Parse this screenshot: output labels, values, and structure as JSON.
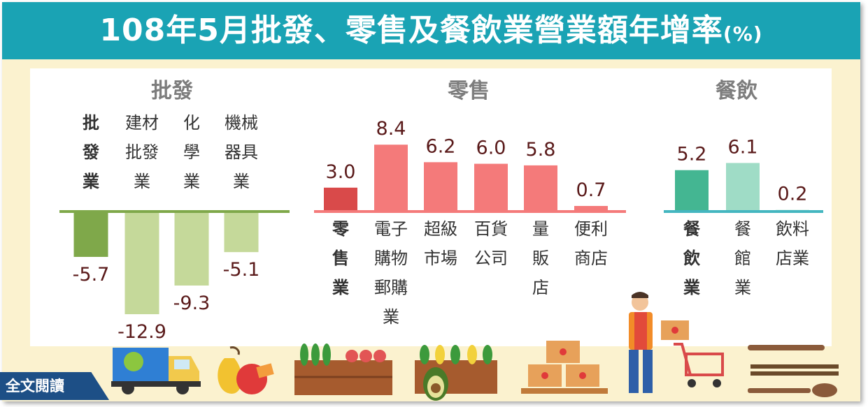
{
  "title": {
    "main": "108年5月批發、零售及餐飲業營業額年增率",
    "unit": "(%)"
  },
  "read_more_label": "全文閱讀",
  "colors": {
    "title_bar": "#1aa3b4",
    "background": "#fbf2cf",
    "wholesale_total": "#7fa84a",
    "wholesale_sub": "#c5d99a",
    "retail_total": "#d94a4a",
    "retail_sub": "#f47a7a",
    "food_total": "#44b692",
    "food_sub": "#9fdcc6",
    "value_text": "#5a1a1a"
  },
  "icons": [
    "delivery-truck-icon",
    "fruit-icon",
    "vegetable-crate-icon",
    "avocado-crate-icon",
    "box-pallet-icon",
    "shopper-with-cart-icon",
    "cutlery-icon"
  ],
  "chart_data": {
    "type": "bar",
    "title": "108年5月批發、零售及餐飲業營業額年增率(%)",
    "groups": [
      {
        "name": "批發",
        "color_total": "#7fa84a",
        "color_sub": "#c5d99a",
        "bars": [
          {
            "label": "批發業",
            "value": -5.7,
            "total": true
          },
          {
            "label": "建材批發業",
            "value": -12.9,
            "total": false
          },
          {
            "label": "化學業",
            "value": -9.3,
            "total": false
          },
          {
            "label": "機械器具業",
            "value": -5.1,
            "total": false
          }
        ]
      },
      {
        "name": "零售",
        "color_total": "#d94a4a",
        "color_sub": "#f47a7a",
        "bars": [
          {
            "label": "零售業",
            "value": 3.0,
            "total": true
          },
          {
            "label": "電子購物郵購業",
            "value": 8.4,
            "total": false
          },
          {
            "label": "超級市場",
            "value": 6.2,
            "total": false
          },
          {
            "label": "百貨公司",
            "value": 6.0,
            "total": false
          },
          {
            "label": "量販店",
            "value": 5.8,
            "total": false
          },
          {
            "label": "便利商店",
            "value": 0.7,
            "total": false
          }
        ]
      },
      {
        "name": "餐飲",
        "color_total": "#44b692",
        "color_sub": "#9fdcc6",
        "bars": [
          {
            "label": "餐飲業",
            "value": 5.2,
            "total": true
          },
          {
            "label": "餐館業",
            "value": 6.1,
            "total": false
          },
          {
            "label": "飲料店業",
            "value": 0.2,
            "total": false
          }
        ]
      }
    ]
  }
}
